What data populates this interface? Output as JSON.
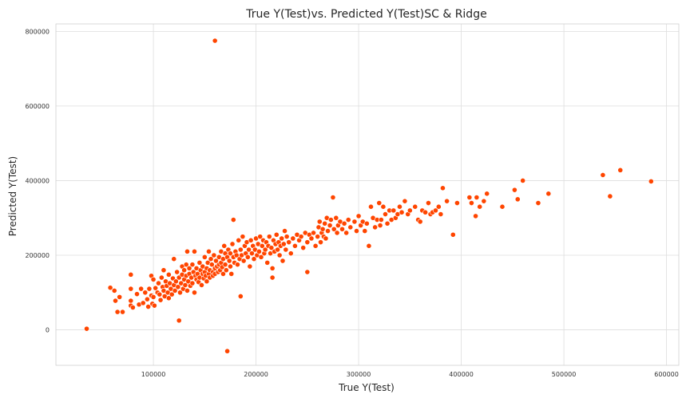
{
  "chart_data": {
    "type": "scatter",
    "title": "True Y(Test)vs. Predicted Y(Test)SC & Ridge",
    "xlabel": "True Y(Test)",
    "ylabel": "Predicted Y(Test)",
    "xlim": [
      5000,
      612000
    ],
    "ylim": [
      -95000,
      820000
    ],
    "xticks": [
      100000,
      200000,
      300000,
      400000,
      500000,
      600000
    ],
    "xtick_labels": [
      "100000",
      "200000",
      "300000",
      "400000",
      "500000",
      "600000"
    ],
    "yticks": [
      0,
      200000,
      400000,
      600000,
      800000
    ],
    "ytick_labels": [
      "0",
      "200000",
      "400000",
      "600000",
      "800000"
    ],
    "grid": true,
    "color": "#ff4500",
    "series": [
      {
        "points": [
          [
            35000,
            3000
          ],
          [
            58000,
            113000
          ],
          [
            62000,
            105000
          ],
          [
            63000,
            78000
          ],
          [
            65000,
            48000
          ],
          [
            67000,
            88000
          ],
          [
            70000,
            48000
          ],
          [
            78000,
            148000
          ],
          [
            78000,
            110000
          ],
          [
            78000,
            78000
          ],
          [
            78000,
            65000
          ],
          [
            80000,
            60000
          ],
          [
            84000,
            96000
          ],
          [
            86000,
            68000
          ],
          [
            88000,
            110000
          ],
          [
            90000,
            72000
          ],
          [
            92000,
            100000
          ],
          [
            94000,
            82000
          ],
          [
            95000,
            62000
          ],
          [
            96000,
            110000
          ],
          [
            98000,
            145000
          ],
          [
            98000,
            92000
          ],
          [
            99000,
            70000
          ],
          [
            100000,
            135000
          ],
          [
            100000,
            88000
          ],
          [
            101000,
            65000
          ],
          [
            102000,
            112000
          ],
          [
            104000,
            100000
          ],
          [
            105000,
            125000
          ],
          [
            106000,
            95000
          ],
          [
            107000,
            80000
          ],
          [
            108000,
            140000
          ],
          [
            109000,
            115000
          ],
          [
            110000,
            160000
          ],
          [
            110000,
            105000
          ],
          [
            111000,
            90000
          ],
          [
            112000,
            130000
          ],
          [
            113000,
            118000
          ],
          [
            114000,
            100000
          ],
          [
            115000,
            148000
          ],
          [
            115000,
            85000
          ],
          [
            116000,
            125000
          ],
          [
            117000,
            110000
          ],
          [
            118000,
            95000
          ],
          [
            119000,
            138000
          ],
          [
            120000,
            190000
          ],
          [
            120000,
            120000
          ],
          [
            121000,
            105000
          ],
          [
            122000,
            130000
          ],
          [
            123000,
            155000
          ],
          [
            124000,
            115000
          ],
          [
            125000,
            25000
          ],
          [
            125000,
            140000
          ],
          [
            126000,
            100000
          ],
          [
            127000,
            125000
          ],
          [
            128000,
            170000
          ],
          [
            128000,
            148000
          ],
          [
            129000,
            110000
          ],
          [
            130000,
            135000
          ],
          [
            130000,
            160000
          ],
          [
            131000,
            120000
          ],
          [
            132000,
            175000
          ],
          [
            132000,
            145000
          ],
          [
            133000,
            210000
          ],
          [
            133000,
            105000
          ],
          [
            134000,
            130000
          ],
          [
            135000,
            150000
          ],
          [
            135000,
            165000
          ],
          [
            136000,
            118000
          ],
          [
            137000,
            140000
          ],
          [
            138000,
            175000
          ],
          [
            138000,
            125000
          ],
          [
            139000,
            155000
          ],
          [
            140000,
            210000
          ],
          [
            140000,
            100000
          ],
          [
            141000,
            145000
          ],
          [
            142000,
            135000
          ],
          [
            142000,
            165000
          ],
          [
            143000,
            150000
          ],
          [
            144000,
            128000
          ],
          [
            145000,
            180000
          ],
          [
            145000,
            140000
          ],
          [
            146000,
            160000
          ],
          [
            147000,
            120000
          ],
          [
            148000,
            150000
          ],
          [
            148000,
            170000
          ],
          [
            149000,
            138000
          ],
          [
            150000,
            195000
          ],
          [
            150000,
            155000
          ],
          [
            151000,
            145000
          ],
          [
            152000,
            165000
          ],
          [
            152000,
            130000
          ],
          [
            153000,
            180000
          ],
          [
            154000,
            210000
          ],
          [
            154000,
            150000
          ],
          [
            155000,
            160000
          ],
          [
            155000,
            140000
          ],
          [
            156000,
            190000
          ],
          [
            157000,
            175000
          ],
          [
            158000,
            155000
          ],
          [
            158000,
            145000
          ],
          [
            159000,
            200000
          ],
          [
            160000,
            775000
          ],
          [
            160000,
            165000
          ],
          [
            160000,
            150000
          ],
          [
            161000,
            185000
          ],
          [
            162000,
            170000
          ],
          [
            163000,
            155000
          ],
          [
            164000,
            195000
          ],
          [
            164000,
            175000
          ],
          [
            165000,
            160000
          ],
          [
            166000,
            210000
          ],
          [
            166000,
            180000
          ],
          [
            167000,
            168000
          ],
          [
            168000,
            190000
          ],
          [
            168000,
            150000
          ],
          [
            169000,
            225000
          ],
          [
            170000,
            205000
          ],
          [
            170000,
            175000
          ],
          [
            171000,
            160000
          ],
          [
            172000,
            -57000
          ],
          [
            172000,
            195000
          ],
          [
            173000,
            215000
          ],
          [
            174000,
            185000
          ],
          [
            175000,
            170000
          ],
          [
            175000,
            205000
          ],
          [
            176000,
            150000
          ],
          [
            177000,
            230000
          ],
          [
            178000,
            295000
          ],
          [
            178000,
            195000
          ],
          [
            179000,
            180000
          ],
          [
            180000,
            210000
          ],
          [
            181000,
            200000
          ],
          [
            182000,
            175000
          ],
          [
            183000,
            240000
          ],
          [
            184000,
            190000
          ],
          [
            185000,
            90000
          ],
          [
            185000,
            215000
          ],
          [
            186000,
            200000
          ],
          [
            187000,
            250000
          ],
          [
            188000,
            185000
          ],
          [
            189000,
            225000
          ],
          [
            190000,
            205000
          ],
          [
            191000,
            235000
          ],
          [
            192000,
            195000
          ],
          [
            193000,
            215000
          ],
          [
            194000,
            170000
          ],
          [
            195000,
            240000
          ],
          [
            196000,
            205000
          ],
          [
            197000,
            225000
          ],
          [
            198000,
            190000
          ],
          [
            199000,
            215000
          ],
          [
            200000,
            245000
          ],
          [
            201000,
            200000
          ],
          [
            202000,
            230000
          ],
          [
            203000,
            210000
          ],
          [
            204000,
            250000
          ],
          [
            205000,
            195000
          ],
          [
            206000,
            225000
          ],
          [
            207000,
            240000
          ],
          [
            208000,
            205000
          ],
          [
            209000,
            215000
          ],
          [
            210000,
            235000
          ],
          [
            211000,
            180000
          ],
          [
            212000,
            225000
          ],
          [
            213000,
            250000
          ],
          [
            214000,
            205000
          ],
          [
            215000,
            220000
          ],
          [
            216000,
            165000
          ],
          [
            216000,
            140000
          ],
          [
            217000,
            240000
          ],
          [
            218000,
            210000
          ],
          [
            219000,
            230000
          ],
          [
            220000,
            255000
          ],
          [
            221000,
            215000
          ],
          [
            222000,
            235000
          ],
          [
            223000,
            200000
          ],
          [
            224000,
            225000
          ],
          [
            225000,
            245000
          ],
          [
            226000,
            185000
          ],
          [
            227000,
            230000
          ],
          [
            228000,
            265000
          ],
          [
            229000,
            215000
          ],
          [
            230000,
            250000
          ],
          [
            232000,
            235000
          ],
          [
            234000,
            205000
          ],
          [
            236000,
            245000
          ],
          [
            238000,
            225000
          ],
          [
            240000,
            255000
          ],
          [
            242000,
            240000
          ],
          [
            244000,
            250000
          ],
          [
            246000,
            220000
          ],
          [
            248000,
            260000
          ],
          [
            250000,
            155000
          ],
          [
            250000,
            235000
          ],
          [
            252000,
            255000
          ],
          [
            254000,
            245000
          ],
          [
            256000,
            260000
          ],
          [
            258000,
            225000
          ],
          [
            260000,
            250000
          ],
          [
            261000,
            275000
          ],
          [
            262000,
            290000
          ],
          [
            263000,
            235000
          ],
          [
            264000,
            260000
          ],
          [
            265000,
            270000
          ],
          [
            266000,
            250000
          ],
          [
            267000,
            285000
          ],
          [
            268000,
            245000
          ],
          [
            269000,
            300000
          ],
          [
            270000,
            265000
          ],
          [
            272000,
            280000
          ],
          [
            273000,
            295000
          ],
          [
            275000,
            355000
          ],
          [
            276000,
            270000
          ],
          [
            278000,
            300000
          ],
          [
            279000,
            260000
          ],
          [
            280000,
            280000
          ],
          [
            282000,
            290000
          ],
          [
            284000,
            270000
          ],
          [
            286000,
            285000
          ],
          [
            288000,
            260000
          ],
          [
            290000,
            295000
          ],
          [
            292000,
            275000
          ],
          [
            296000,
            290000
          ],
          [
            298000,
            265000
          ],
          [
            300000,
            305000
          ],
          [
            302000,
            280000
          ],
          [
            304000,
            290000
          ],
          [
            306000,
            265000
          ],
          [
            308000,
            285000
          ],
          [
            310000,
            225000
          ],
          [
            312000,
            330000
          ],
          [
            314000,
            300000
          ],
          [
            316000,
            275000
          ],
          [
            318000,
            295000
          ],
          [
            320000,
            340000
          ],
          [
            321000,
            280000
          ],
          [
            322000,
            295000
          ],
          [
            324000,
            330000
          ],
          [
            326000,
            310000
          ],
          [
            328000,
            285000
          ],
          [
            330000,
            320000
          ],
          [
            332000,
            295000
          ],
          [
            334000,
            320000
          ],
          [
            336000,
            300000
          ],
          [
            338000,
            310000
          ],
          [
            340000,
            330000
          ],
          [
            342000,
            315000
          ],
          [
            345000,
            345000
          ],
          [
            348000,
            310000
          ],
          [
            350000,
            320000
          ],
          [
            355000,
            330000
          ],
          [
            358000,
            295000
          ],
          [
            360000,
            290000
          ],
          [
            362000,
            320000
          ],
          [
            365000,
            315000
          ],
          [
            368000,
            340000
          ],
          [
            370000,
            310000
          ],
          [
            372000,
            315000
          ],
          [
            375000,
            320000
          ],
          [
            378000,
            330000
          ],
          [
            380000,
            310000
          ],
          [
            382000,
            380000
          ],
          [
            386000,
            345000
          ],
          [
            392000,
            255000
          ],
          [
            396000,
            340000
          ],
          [
            408000,
            355000
          ],
          [
            410000,
            340000
          ],
          [
            414000,
            305000
          ],
          [
            415000,
            355000
          ],
          [
            418000,
            330000
          ],
          [
            422000,
            345000
          ],
          [
            425000,
            365000
          ],
          [
            440000,
            330000
          ],
          [
            452000,
            375000
          ],
          [
            455000,
            350000
          ],
          [
            460000,
            400000
          ],
          [
            475000,
            340000
          ],
          [
            485000,
            365000
          ],
          [
            538000,
            415000
          ],
          [
            545000,
            358000
          ],
          [
            555000,
            428000
          ],
          [
            585000,
            398000
          ]
        ]
      }
    ]
  }
}
